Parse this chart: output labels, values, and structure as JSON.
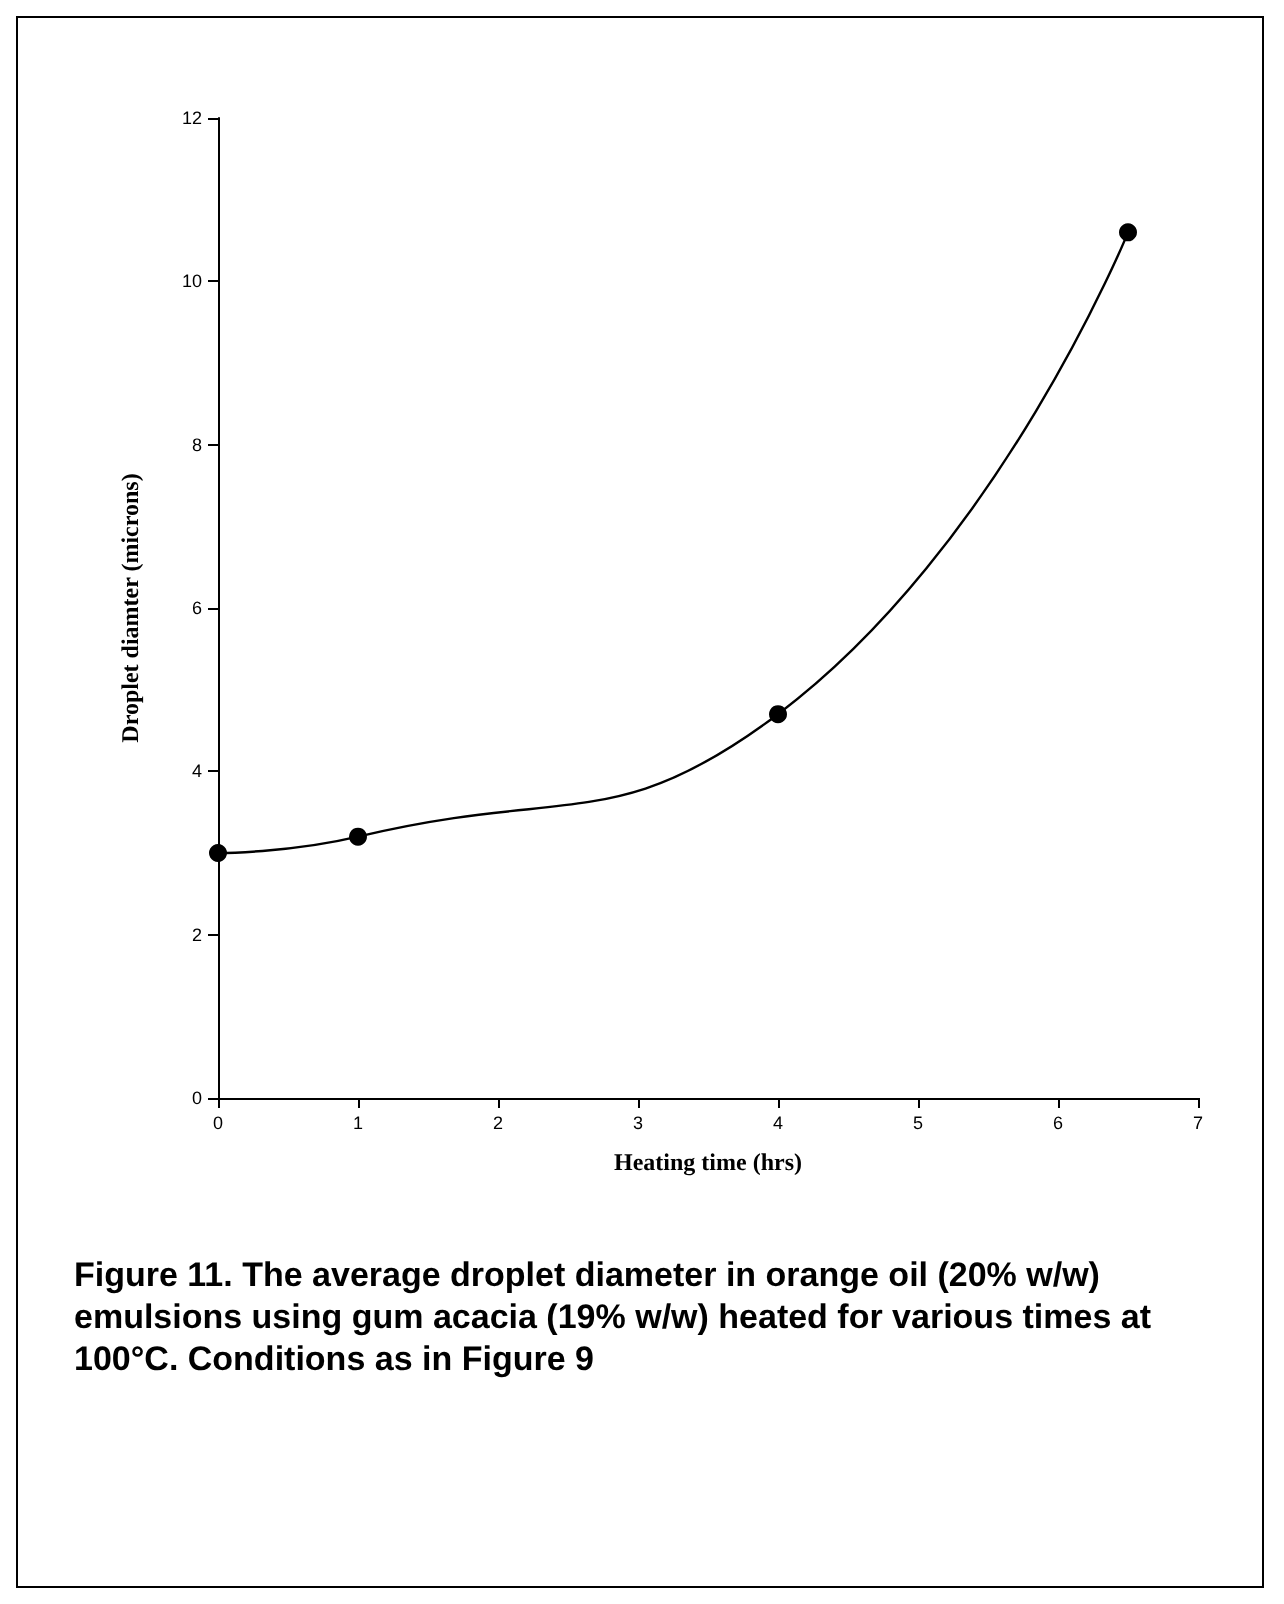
{
  "chart_data": {
    "type": "line",
    "xlabel": "Heating time (hrs)",
    "ylabel": "Droplet diamter (microns)",
    "x": [
      0,
      1,
      4,
      6.5
    ],
    "values": [
      3.0,
      3.2,
      4.7,
      10.6
    ],
    "color": "#000000",
    "marker": "circle",
    "line_style": "solid",
    "xlim": [
      0,
      7
    ],
    "xticks": [
      0,
      1,
      2,
      3,
      4,
      5,
      6,
      7
    ],
    "ylim": [
      0,
      12
    ],
    "yticks": [
      0,
      2,
      4,
      6,
      8,
      10,
      12
    ],
    "annotations": [
      "Figure 11. The average droplet diameter in orange oil (20% w/w) emulsions using gum acacia (19% w/w) heated for various times at 100°C. Conditions as in Figure 9"
    ]
  }
}
